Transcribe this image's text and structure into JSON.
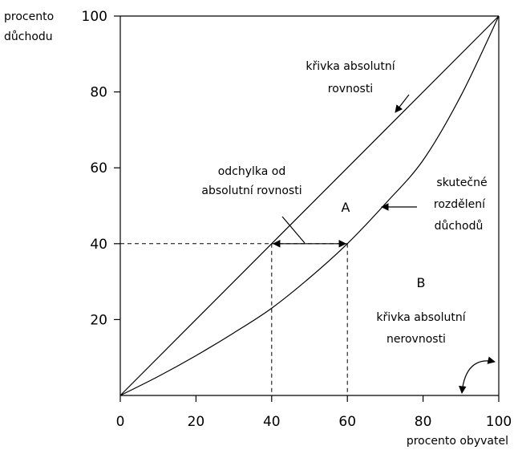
{
  "chart_data": {
    "type": "line",
    "xlabel": "procento obyvatel",
    "ylabel": [
      "procento",
      "důchodu"
    ],
    "xlim": [
      0,
      100
    ],
    "ylim": [
      0,
      100
    ],
    "x_ticks": [
      0,
      20,
      40,
      60,
      80,
      100
    ],
    "y_ticks": [
      20,
      40,
      60,
      80,
      100
    ],
    "grid": false,
    "series": [
      {
        "id": "equality",
        "x": [
          0,
          100
        ],
        "y": [
          0,
          100
        ]
      },
      {
        "id": "lorenz",
        "x": [
          0,
          10,
          20,
          30,
          40,
          50,
          60,
          70,
          80,
          90,
          100
        ],
        "y": [
          0,
          5,
          10.5,
          16.5,
          23,
          31,
          40,
          50.5,
          62,
          79,
          100
        ]
      }
    ],
    "guides": [
      {
        "x": 40,
        "y": 40
      },
      {
        "x": 60,
        "y": 40
      }
    ],
    "annotations": {
      "equality_label": [
        "křivka absolutní",
        "rovnosti"
      ],
      "deviation_label": [
        "odchylka od",
        "absolutní rovnosti"
      ],
      "lorenz_label": [
        "skutečné",
        "rozdělení",
        "důchodů"
      ],
      "inequality_label": [
        "křivka absolutní",
        "nerovnosti"
      ],
      "region_a": "A",
      "region_b": "B"
    }
  }
}
